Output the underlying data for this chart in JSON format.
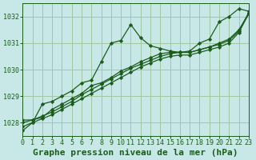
{
  "background_color": "#c8e8e8",
  "grid_color": "#a0c8a0",
  "line_color": "#1a5c1a",
  "marker_color": "#1a5c1a",
  "xlabel": "Graphe pression niveau de la mer (hPa)",
  "xlabel_fontsize": 8,
  "tick_fontsize": 6,
  "ylim": [
    1027.5,
    1032.5
  ],
  "yticks": [
    1028,
    1029,
    1030,
    1031,
    1032
  ],
  "xlim": [
    0,
    23
  ],
  "xticks": [
    0,
    1,
    2,
    3,
    4,
    5,
    6,
    7,
    8,
    9,
    10,
    11,
    12,
    13,
    14,
    15,
    16,
    17,
    18,
    19,
    20,
    21,
    22,
    23
  ],
  "series": [
    [
      1027.7,
      1028.0,
      1028.7,
      1028.8,
      1029.0,
      1029.2,
      1029.5,
      1029.6,
      1030.3,
      1031.0,
      1031.1,
      1031.7,
      1031.2,
      1030.9,
      1030.8,
      1030.7,
      1030.65,
      1030.7,
      1031.0,
      1031.15,
      1031.8,
      1032.0,
      1032.3,
      1032.2
    ],
    [
      1028.1,
      1028.1,
      1028.2,
      1028.5,
      1028.7,
      1028.9,
      1029.1,
      1029.4,
      1029.5,
      1029.7,
      1029.95,
      1030.1,
      1030.3,
      1030.45,
      1030.6,
      1030.65,
      1030.65,
      1030.65,
      1030.75,
      1030.85,
      1031.0,
      1031.15,
      1031.5,
      1032.1
    ],
    [
      1028.0,
      1028.1,
      1028.25,
      1028.4,
      1028.6,
      1028.8,
      1029.05,
      1029.25,
      1029.45,
      1029.65,
      1029.85,
      1030.05,
      1030.2,
      1030.35,
      1030.5,
      1030.6,
      1030.65,
      1030.65,
      1030.75,
      1030.85,
      1030.95,
      1031.1,
      1031.45,
      1032.15
    ],
    [
      1027.85,
      1028.0,
      1028.15,
      1028.3,
      1028.5,
      1028.7,
      1028.9,
      1029.1,
      1029.3,
      1029.5,
      1029.7,
      1029.9,
      1030.1,
      1030.25,
      1030.4,
      1030.5,
      1030.55,
      1030.55,
      1030.65,
      1030.75,
      1030.85,
      1031.0,
      1031.4,
      1032.1
    ]
  ]
}
